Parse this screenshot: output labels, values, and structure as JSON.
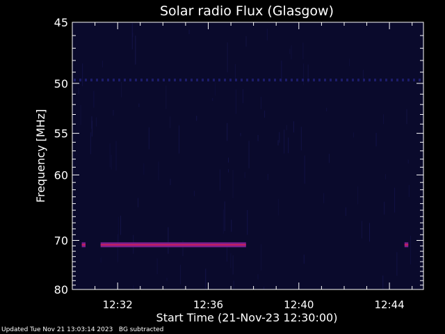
{
  "footer": {
    "updated": "Updated Tue Nov 21 13:03:14 2023",
    "note": "BG subtracted"
  },
  "chart_data": {
    "type": "heatmap",
    "title": "Solar radio Flux (Glasgow)",
    "xlabel": "Start Time (21-Nov-23 12:30:00)",
    "ylabel": "Frequency [MHz]",
    "xlim": [
      "12:30:00",
      "12:45:30"
    ],
    "ylim": [
      45,
      80
    ],
    "x_ticks": [
      "12:32",
      "12:36",
      "12:40",
      "12:44"
    ],
    "y_ticks": [
      45,
      50,
      55,
      60,
      70,
      80
    ],
    "colors": {
      "background": "#0a0a2c",
      "faint_line": "#14144a",
      "band": "#7a1f8f",
      "band_core": "#cc1f5a",
      "frame": "#ffffff"
    },
    "features": [
      {
        "name": "faint band",
        "frequency_mhz": 49.7,
        "start": "12:30:00",
        "end": "12:45:30"
      },
      {
        "name": "strong band",
        "frequency_mhz": 70.8,
        "start": "12:31:15",
        "end": "12:37:40"
      },
      {
        "name": "strong band",
        "frequency_mhz": 70.8,
        "start": "12:30:25",
        "end": "12:30:35"
      },
      {
        "name": "strong band",
        "frequency_mhz": 70.8,
        "start": "12:44:40",
        "end": "12:44:50"
      }
    ]
  }
}
